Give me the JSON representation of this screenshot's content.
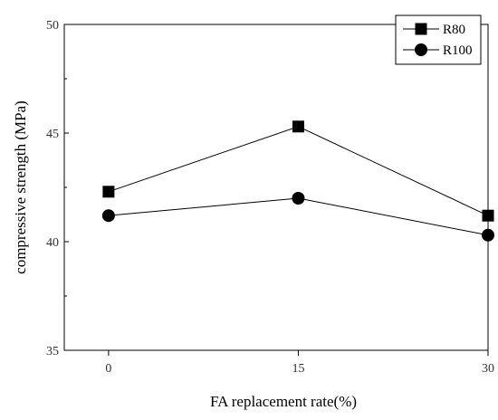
{
  "chart_data": {
    "type": "line",
    "title": "",
    "xlabel": "FA replacement rate(%)",
    "ylabel": "compressive strength (MPa)",
    "x": [
      0,
      15,
      30
    ],
    "xlim": [
      -3.5,
      30
    ],
    "ylim": [
      35,
      50
    ],
    "xticks": [
      0,
      15,
      30
    ],
    "xtick_labels": [
      "0",
      "15",
      "30"
    ],
    "yticks": [
      35,
      40,
      45,
      50
    ],
    "ytick_labels": [
      "35",
      "40",
      "45",
      "50"
    ],
    "grid": false,
    "legend": "top-right",
    "series": [
      {
        "name": "R80",
        "marker": "square",
        "color": "#000000",
        "values": [
          42.3,
          45.3,
          41.2
        ]
      },
      {
        "name": "R100",
        "marker": "circle",
        "color": "#000000",
        "values": [
          41.2,
          42.0,
          40.3
        ]
      }
    ]
  }
}
